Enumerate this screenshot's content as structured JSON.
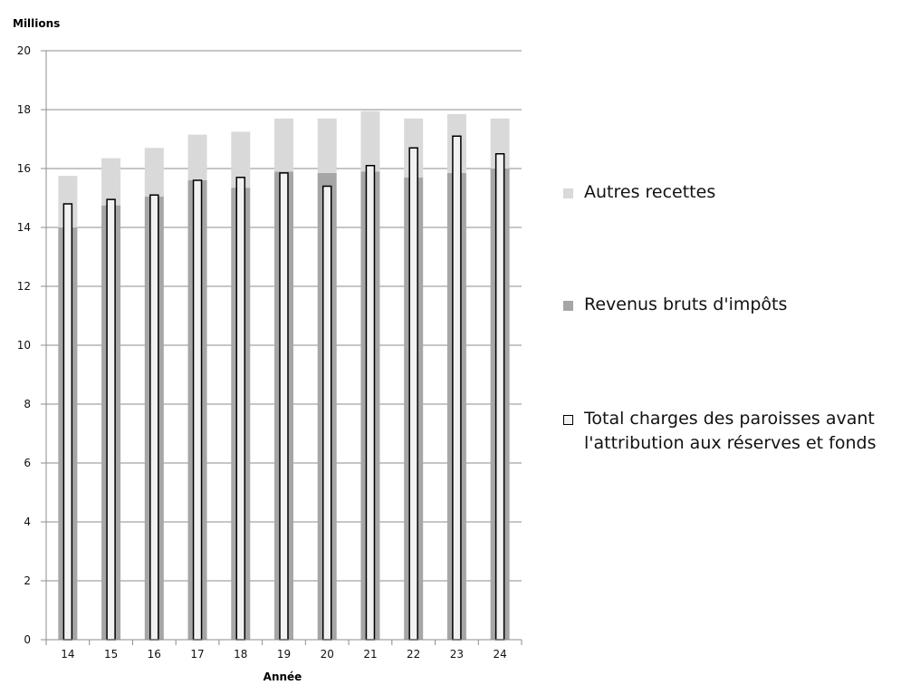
{
  "chart_data": {
    "type": "bar",
    "title": "",
    "ylabel": "Millions",
    "xlabel": "Année",
    "ylim": [
      0,
      20
    ],
    "yticks": [
      0,
      2,
      4,
      6,
      8,
      10,
      12,
      14,
      16,
      18,
      20
    ],
    "grid": true,
    "legend_position": "right",
    "categories": [
      "14",
      "15",
      "16",
      "17",
      "18",
      "19",
      "20",
      "21",
      "22",
      "23",
      "24"
    ],
    "series": [
      {
        "name": "Autres recettes",
        "kind": "stacked-bar",
        "color": "#d9d9d9",
        "values": [
          1.75,
          1.6,
          1.65,
          1.55,
          1.9,
          1.8,
          1.85,
          2.05,
          2.0,
          2.0,
          1.7
        ]
      },
      {
        "name": "Revenus bruts d'impôts",
        "kind": "stacked-bar",
        "color": "#a6a6a6",
        "values": [
          14.0,
          14.75,
          15.05,
          15.6,
          15.35,
          15.9,
          15.85,
          15.9,
          15.7,
          15.85,
          16.0
        ]
      },
      {
        "name": "Total charges des paroisses avant l'attribution aux réserves et fonds",
        "kind": "overlay-bar",
        "color": "#f2f2f2",
        "values": [
          14.8,
          14.95,
          15.1,
          15.6,
          15.7,
          15.85,
          15.4,
          16.1,
          16.7,
          17.1,
          16.5
        ]
      }
    ]
  },
  "legend": {
    "items": [
      {
        "label_lines": [
          "Autres recettes"
        ],
        "color": "#d9d9d9",
        "style": "filled"
      },
      {
        "label_lines": [
          "Revenus bruts d'impôts"
        ],
        "color": "#a6a6a6",
        "style": "filled"
      },
      {
        "label_lines": [
          "Total charges des paroisses avant",
          "l'attribution aux réserves et fonds"
        ],
        "color": "#f2f2f2",
        "style": "outlined"
      }
    ]
  }
}
